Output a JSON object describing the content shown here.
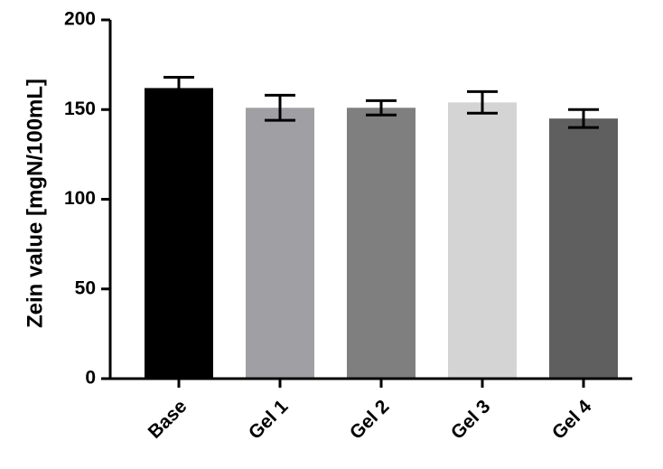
{
  "chart_data": {
    "type": "bar",
    "y_label": "Zein value [mgN/100mL]",
    "categories": [
      "Base",
      "Gel 1",
      "Gel 2",
      "Gel 3",
      "Gel 4"
    ],
    "values": [
      162,
      151,
      151,
      154,
      145
    ],
    "errors": [
      6,
      7,
      4,
      6,
      5
    ],
    "colors": [
      "#000000",
      "#a0a0a4",
      "#7f7f7f",
      "#d4d4d4",
      "#5f5f5f"
    ],
    "ylim": [
      0,
      200
    ],
    "yticks": [
      0,
      50,
      100,
      150,
      200
    ]
  }
}
